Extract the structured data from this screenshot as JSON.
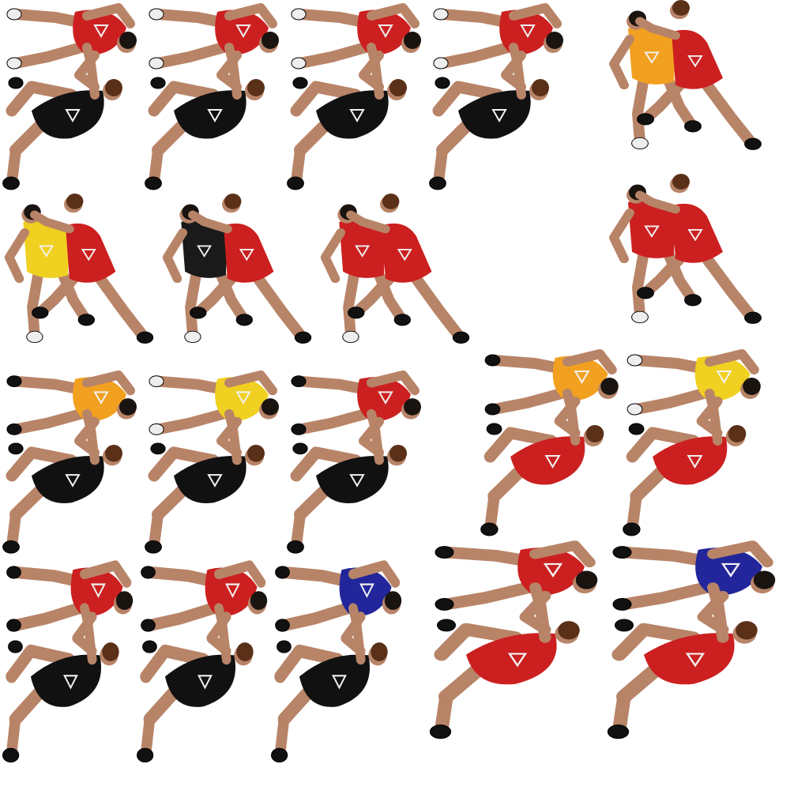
{
  "sprite_sheet": {
    "background": "#ffffff",
    "colors": {
      "skin": "#b88468",
      "skin_dark": "#7a4e36",
      "hair_brown": "#5a3018",
      "hair_black": "#1a1410",
      "shoe": "#111111",
      "shoe_white": "#eeeeee",
      "logo": "#f2f2f2"
    },
    "sprites": [
      {
        "pose": "ground-lock",
        "top": "#cc2020",
        "bottom": "#111111",
        "shoe_top": "white"
      },
      {
        "pose": "ground-lock",
        "top": "#cc2020",
        "bottom": "#111111",
        "shoe_top": "white"
      },
      {
        "pose": "ground-lock",
        "top": "#cc2020",
        "bottom": "#111111",
        "shoe_top": "white"
      },
      {
        "pose": "ground-lock",
        "top": "#cc2020",
        "bottom": "#111111",
        "shoe_top": "white"
      },
      {
        "pose": "standing-tieup",
        "front": "#cc1f1f",
        "back": "#f2a020"
      },
      {
        "pose": "standing-tieup",
        "front": "#cc1f1f",
        "back": "#f0d020"
      },
      {
        "pose": "standing-tieup",
        "front": "#cc1f1f",
        "back": "#1a1a1a"
      },
      {
        "pose": "standing-tieup",
        "front": "#cc1f1f",
        "back": "#cc2020"
      },
      {
        "pose": "standing-tieup",
        "front": "#cc1f1f",
        "back": "#cc2020"
      },
      {
        "pose": "ground-lock",
        "top": "#f2a020",
        "bottom": "#111111",
        "shoe_top": "black"
      },
      {
        "pose": "ground-lock",
        "top": "#f0d020",
        "bottom": "#111111",
        "shoe_top": "white"
      },
      {
        "pose": "ground-lock",
        "top": "#cc2020",
        "bottom": "#111111",
        "shoe_top": "black"
      },
      {
        "pose": "ground-lock",
        "top": "#f2a020",
        "bottom": "#cc2020",
        "shoe_top": "black"
      },
      {
        "pose": "ground-lock",
        "top": "#f0d020",
        "bottom": "#cc2020",
        "shoe_top": "white"
      },
      {
        "pose": "ground-lock",
        "top": "#cc2020",
        "bottom": "#111111",
        "shoe_top": "black"
      },
      {
        "pose": "ground-lock",
        "top": "#cc2020",
        "bottom": "#111111",
        "shoe_top": "black"
      },
      {
        "pose": "ground-lock",
        "top": "#22269a",
        "bottom": "#111111",
        "shoe_top": "black"
      },
      {
        "pose": "ground-lock",
        "top": "#cc2020",
        "bottom": "#cc2020",
        "shoe_top": "black"
      },
      {
        "pose": "ground-lock",
        "top": "#22269a",
        "bottom": "#cc2020",
        "shoe_top": "black"
      }
    ]
  }
}
